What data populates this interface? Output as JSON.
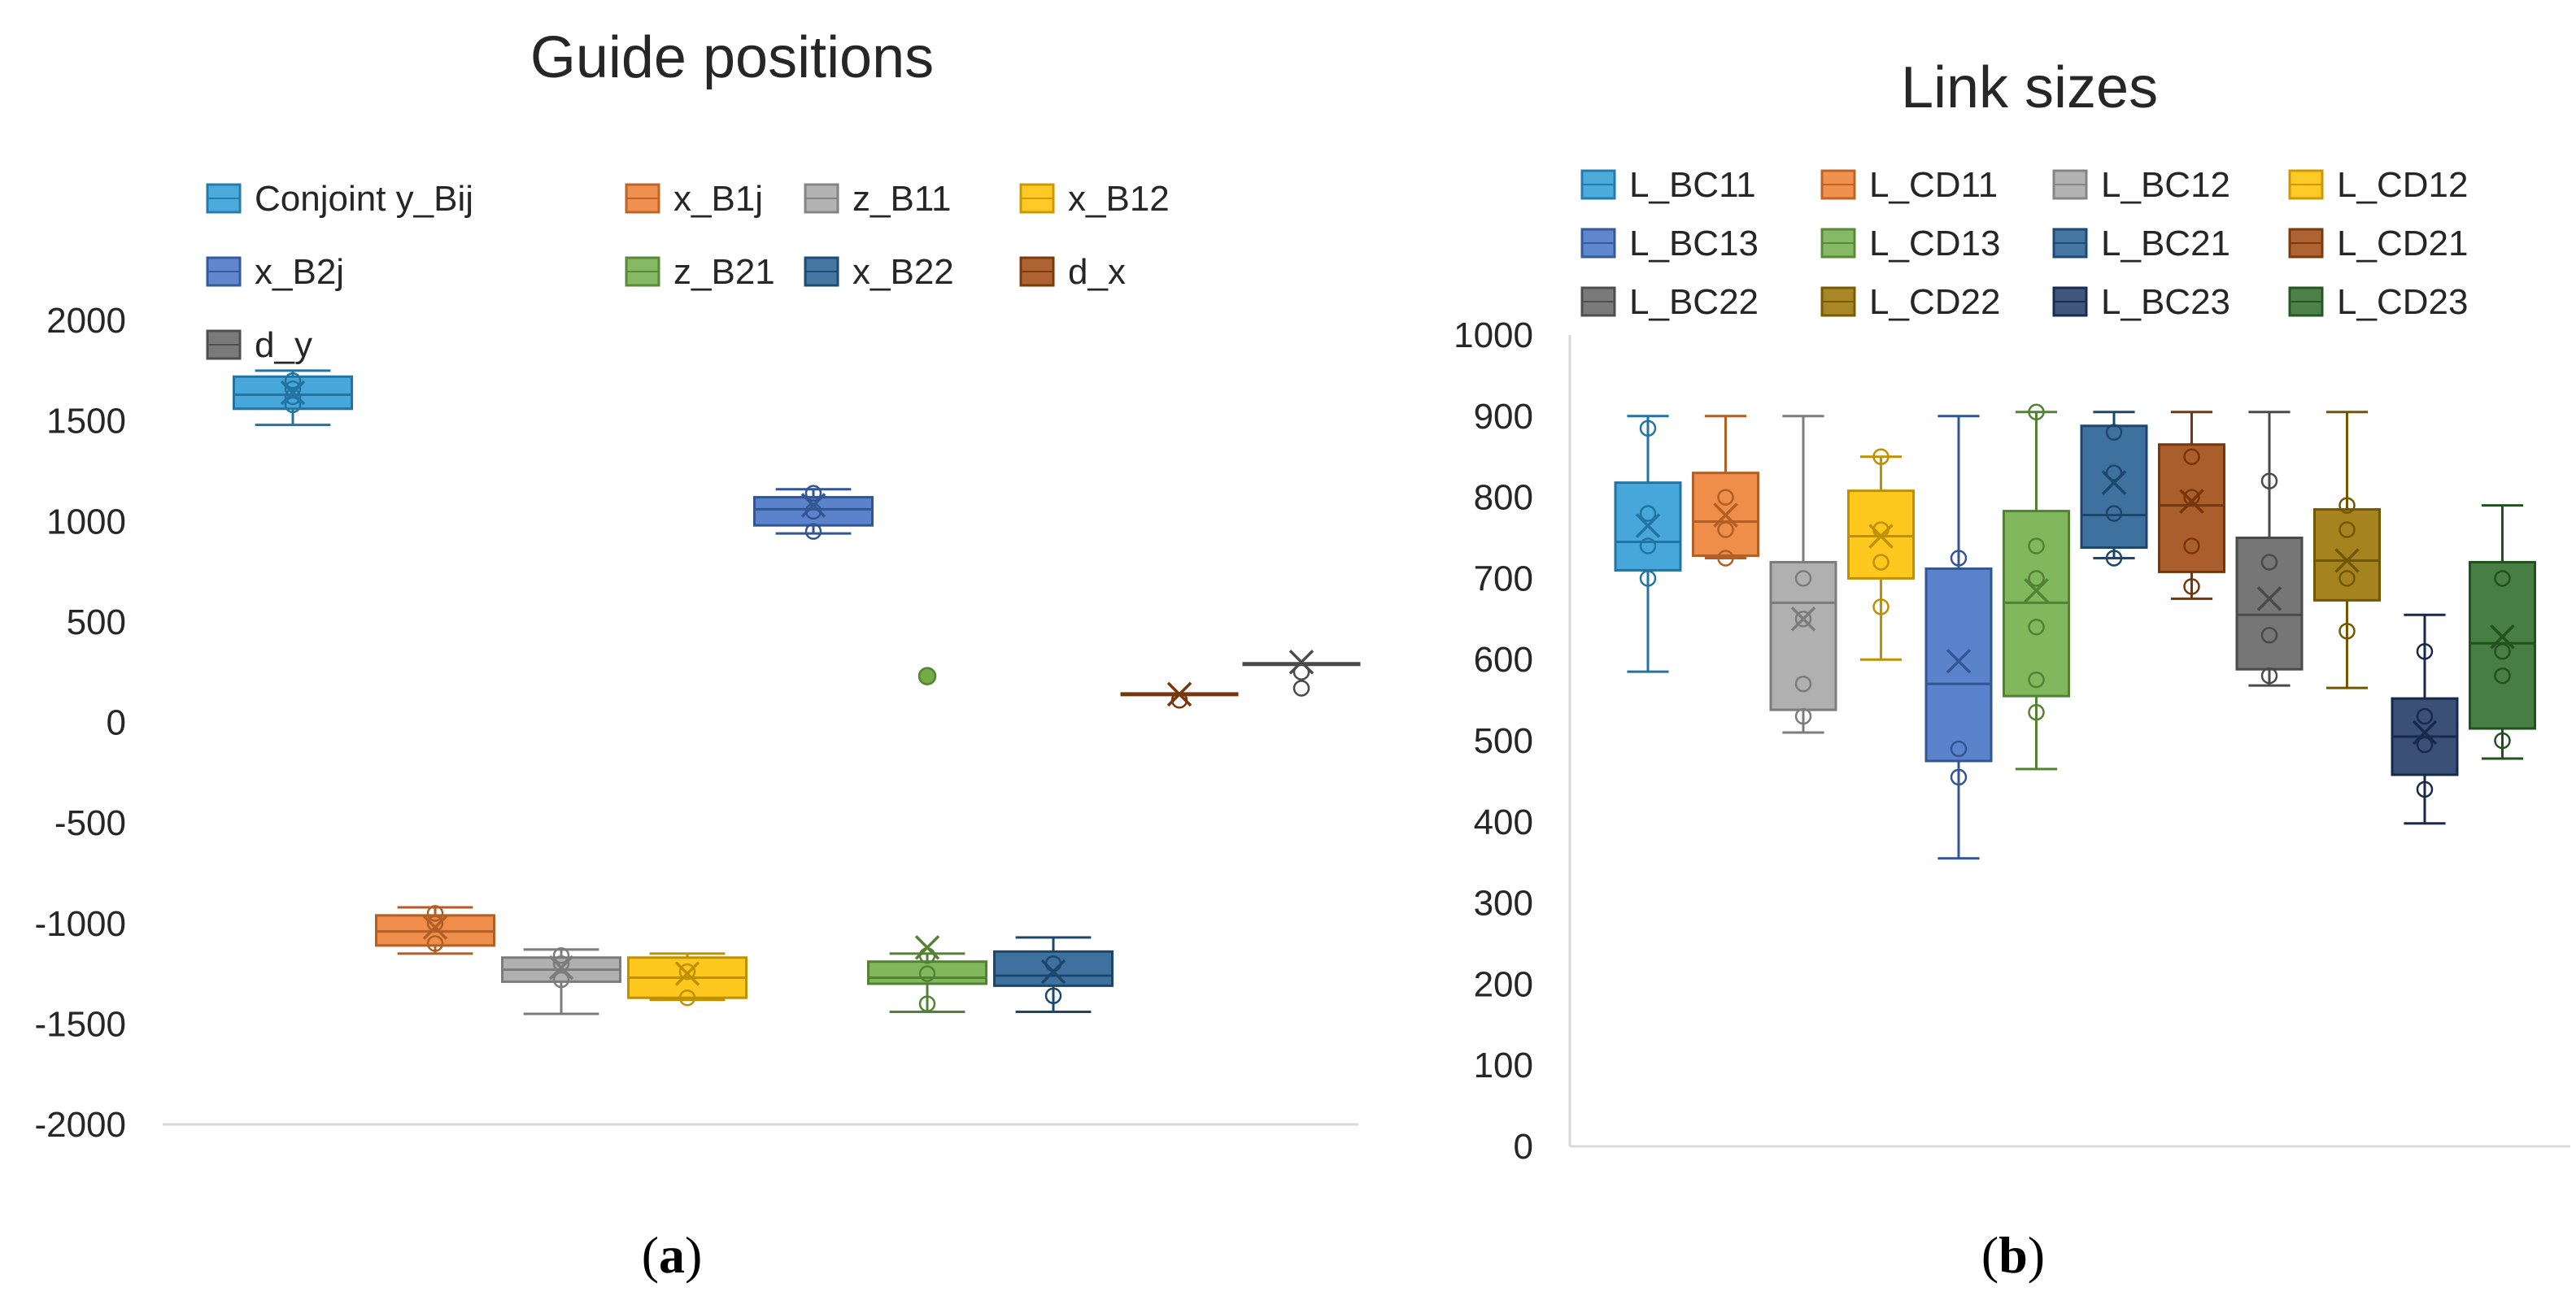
{
  "chart_data": [
    {
      "type": "box",
      "title": "Guide positions",
      "caption_letter": "a",
      "ylim": [
        -2000,
        2000
      ],
      "yticks": [
        2000,
        1500,
        1000,
        500,
        0,
        -500,
        -1000,
        -1500,
        -2000
      ],
      "legend": [
        "Conjoint y_Bij",
        "x_B1j",
        "z_B11",
        "x_B12",
        "x_B2j",
        "z_B21",
        "x_B22",
        "d_x",
        "d_y"
      ],
      "series": [
        {
          "name": "Conjoint y_Bij",
          "color": "#2E9BD6",
          "min": 1480,
          "q1": 1560,
          "median": 1630,
          "q3": 1720,
          "max": 1750,
          "mean": 1640,
          "points": [
            1580,
            1620,
            1660,
            1700
          ]
        },
        {
          "name": "x_B1j",
          "color": "#ED7D31",
          "min": -1150,
          "q1": -1110,
          "median": -1040,
          "q3": -960,
          "max": -920,
          "mean": -1020,
          "points": [
            -1100,
            -1000,
            -950
          ]
        },
        {
          "name": "z_B11",
          "color": "#A5A5A5",
          "min": -1450,
          "q1": -1290,
          "median": -1230,
          "q3": -1170,
          "max": -1130,
          "mean": -1220,
          "points": [
            -1280,
            -1200,
            -1160
          ]
        },
        {
          "name": "x_B12",
          "color": "#FFC000",
          "min": -1380,
          "q1": -1370,
          "median": -1270,
          "q3": -1170,
          "max": -1150,
          "mean": -1250,
          "points": [
            -1370,
            -1240
          ]
        },
        {
          "name": "x_B2j",
          "color": "#4472C4",
          "min": 940,
          "q1": 980,
          "median": 1060,
          "q3": 1120,
          "max": 1160,
          "mean": 1080,
          "points": [
            950,
            1050,
            1140
          ]
        },
        {
          "name": "z_B21",
          "color": "#70AD47",
          "min": -1440,
          "q1": -1300,
          "median": -1270,
          "q3": -1190,
          "max": -1150,
          "mean": -1120,
          "points": [
            -1400,
            -1250,
            -1160
          ],
          "outliers": [
            230
          ]
        },
        {
          "name": "x_B22",
          "color": "#255E91",
          "min": -1440,
          "q1": -1310,
          "median": -1260,
          "q3": -1140,
          "max": -1070,
          "mean": -1240,
          "points": [
            -1360,
            -1200
          ]
        },
        {
          "name": "d_x",
          "color": "#9E480E",
          "min": 140,
          "q1": 140,
          "median": 140,
          "q3": 140,
          "max": 140,
          "mean": 140,
          "points": [
            110
          ]
        },
        {
          "name": "d_y",
          "color": "#636363",
          "min": 290,
          "q1": 290,
          "median": 290,
          "q3": 290,
          "max": 290,
          "mean": 300,
          "points": [
            250,
            170
          ]
        }
      ]
    },
    {
      "type": "box",
      "title": "Link sizes",
      "caption_letter": "b",
      "ylim": [
        0,
        1000
      ],
      "yticks": [
        1000,
        900,
        800,
        700,
        600,
        500,
        400,
        300,
        200,
        100,
        0
      ],
      "legend": [
        "L_BC11",
        "L_CD11",
        "L_BC12",
        "L_CD12",
        "L_BC13",
        "L_CD13",
        "L_BC21",
        "L_CD21",
        "L_BC22",
        "L_CD22",
        "L_BC23",
        "L_CD23"
      ],
      "series": [
        {
          "name": "L_BC11",
          "color": "#2E9BD6",
          "min": 585,
          "q1": 710,
          "median": 745,
          "q3": 818,
          "max": 900,
          "mean": 765,
          "points": [
            700,
            740,
            780,
            885
          ]
        },
        {
          "name": "L_CD11",
          "color": "#ED7D31",
          "min": 725,
          "q1": 728,
          "median": 770,
          "q3": 830,
          "max": 900,
          "mean": 778,
          "points": [
            725,
            760,
            800
          ]
        },
        {
          "name": "L_BC12",
          "color": "#A5A5A5",
          "min": 510,
          "q1": 538,
          "median": 670,
          "q3": 720,
          "max": 900,
          "mean": 650,
          "points": [
            530,
            570,
            650,
            700
          ]
        },
        {
          "name": "L_CD12",
          "color": "#FFC000",
          "min": 600,
          "q1": 700,
          "median": 752,
          "q3": 808,
          "max": 850,
          "mean": 752,
          "points": [
            665,
            720,
            760,
            850
          ]
        },
        {
          "name": "L_BC13",
          "color": "#4472C4",
          "min": 355,
          "q1": 475,
          "median": 570,
          "q3": 712,
          "max": 900,
          "mean": 598,
          "points": [
            455,
            490,
            725
          ]
        },
        {
          "name": "L_CD13",
          "color": "#70AD47",
          "min": 465,
          "q1": 555,
          "median": 670,
          "q3": 783,
          "max": 905,
          "mean": 685,
          "points": [
            535,
            575,
            640,
            700,
            740,
            905
          ]
        },
        {
          "name": "L_BC21",
          "color": "#255E91",
          "min": 725,
          "q1": 738,
          "median": 778,
          "q3": 888,
          "max": 905,
          "mean": 818,
          "points": [
            725,
            780,
            830,
            880
          ]
        },
        {
          "name": "L_CD21",
          "color": "#9E480E",
          "min": 675,
          "q1": 708,
          "median": 790,
          "q3": 865,
          "max": 905,
          "mean": 795,
          "points": [
            690,
            740,
            800,
            850
          ]
        },
        {
          "name": "L_BC22",
          "color": "#636363",
          "min": 568,
          "q1": 588,
          "median": 655,
          "q3": 750,
          "max": 905,
          "mean": 675,
          "points": [
            580,
            630,
            720,
            820
          ]
        },
        {
          "name": "L_CD22",
          "color": "#997300",
          "min": 565,
          "q1": 673,
          "median": 722,
          "q3": 785,
          "max": 905,
          "mean": 722,
          "points": [
            635,
            700,
            760,
            790
          ]
        },
        {
          "name": "L_BC23",
          "color": "#1F3864",
          "min": 398,
          "q1": 458,
          "median": 505,
          "q3": 552,
          "max": 655,
          "mean": 510,
          "points": [
            440,
            495,
            530,
            610
          ]
        },
        {
          "name": "L_CD23",
          "color": "#2F6B29",
          "min": 478,
          "q1": 515,
          "median": 620,
          "q3": 720,
          "max": 790,
          "mean": 628,
          "points": [
            500,
            580,
            610,
            700
          ]
        }
      ]
    }
  ]
}
